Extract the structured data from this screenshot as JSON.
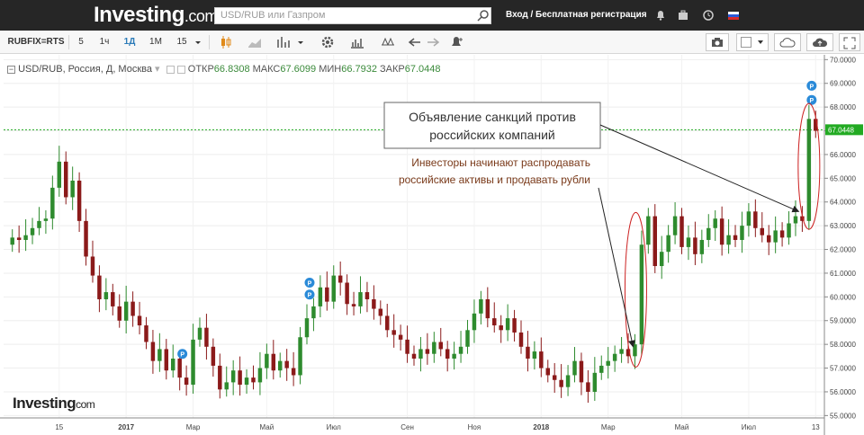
{
  "header": {
    "logo_word": "Investing",
    "logo_suffix": ".com",
    "search_placeholder": "USD/RUB или Газпром",
    "auth_text": "Вход / Бесплатная регистрация"
  },
  "toolbar": {
    "symbol": "RUBFIX=RTS",
    "intervals": [
      "5",
      "1ч",
      "1Д",
      "1М",
      "15"
    ],
    "active_interval": "1Д"
  },
  "legend": {
    "title": "USD/RUB, Россия, Д, Москва",
    "open_label": "ОТКР",
    "open_value": "66.8308",
    "high_label": "МАКС",
    "high_value": "67.6099",
    "low_label": "МИН",
    "low_value": "66.7932",
    "close_label": "ЗАКР",
    "close_value": "67.0448"
  },
  "colors": {
    "up": "#2e8b2e",
    "down": "#8b1a1a",
    "last_price_line": "#22aa22",
    "last_price_tag": "#22aa22",
    "annotation_ellipse": "#cc2222",
    "annotation_text": "#7a3a1a",
    "marker_blue": "#2a8ad8"
  },
  "watermark": {
    "word": "Investing",
    "suffix": "com"
  },
  "chart_data": {
    "type": "candlestick",
    "title": "USD/RUB, Россия, Д, Москва",
    "ylim": [
      54.9,
      70.05
    ],
    "y_ticks": [
      "55.0000",
      "56.0000",
      "57.0000",
      "58.0000",
      "59.0000",
      "60.0000",
      "61.0000",
      "62.0000",
      "63.0000",
      "64.0000",
      "65.0000",
      "66.0000",
      "67.0000",
      "68.0000",
      "69.0000",
      "70.0000"
    ],
    "y_tick_values": [
      55,
      56,
      57,
      58,
      59,
      60,
      61,
      62,
      63,
      64,
      65,
      66,
      67,
      68,
      69,
      70
    ],
    "x_labels": [
      "15",
      "2017",
      "Мар",
      "Май",
      "Июл",
      "Сен",
      "Ноя",
      "2018",
      "Мар",
      "Май",
      "Июл",
      "13"
    ],
    "x_label_index": [
      7,
      17,
      27,
      38,
      48,
      59,
      69,
      79,
      89,
      100,
      110,
      120
    ],
    "last_price": 67.0448,
    "last_price_label": "67.0448",
    "series": [
      {
        "close": [
          62.5,
          62.4,
          62.6,
          62.9,
          63.2,
          63.3,
          64.6,
          65.7,
          64.2,
          64.9,
          63.2,
          61.7,
          60.9,
          59.9,
          60.2,
          59.6,
          59.0,
          59.8,
          59.2,
          58.8,
          58.1,
          57.3,
          57.8,
          56.9,
          57.4,
          56.6,
          56.3,
          58.2,
          58.7,
          57.9,
          57.1,
          56.1,
          56.4,
          56.9,
          56.3,
          56.6,
          56.4,
          57.0,
          57.6,
          56.9,
          57.3,
          57.0,
          56.7,
          58.3,
          59.1,
          59.6,
          60.4,
          59.8,
          60.9,
          60.6,
          59.7,
          59.6,
          60.2,
          59.9,
          59.5,
          59.2,
          58.6,
          58.4,
          58.2,
          57.6,
          57.4,
          57.8,
          57.6,
          58.1,
          57.8,
          57.4,
          57.6,
          57.9,
          58.6,
          59.3,
          59.9,
          59.1,
          58.8,
          58.6,
          59.1,
          58.5,
          57.9,
          57.4,
          57.7,
          57.0,
          56.7,
          56.5,
          56.2,
          56.7,
          57.3,
          56.4,
          56.0,
          56.8,
          57.1,
          57.3,
          57.6,
          57.8,
          57.5,
          58.0,
          62.2,
          63.4,
          61.3,
          61.9,
          62.6,
          63.4,
          62.1,
          62.5,
          61.8,
          62.4,
          62.9,
          63.3,
          62.2,
          62.6,
          62.4,
          63.0,
          63.6,
          62.9,
          62.6,
          62.3,
          62.8,
          62.5,
          63.1,
          63.4,
          63.2,
          67.5,
          67.0
        ]
      },
      {
        "name": "markers",
        "values": [
          "P",
          "P",
          "P",
          "P",
          "P"
        ]
      }
    ],
    "annotations": [
      {
        "text_line1": "Объявление санкций против",
        "text_line2": "российских компаний"
      },
      {
        "text_line1": "Инвесторы начинают распродавать",
        "text_line2": "российские активы и продавать рубли"
      }
    ]
  }
}
